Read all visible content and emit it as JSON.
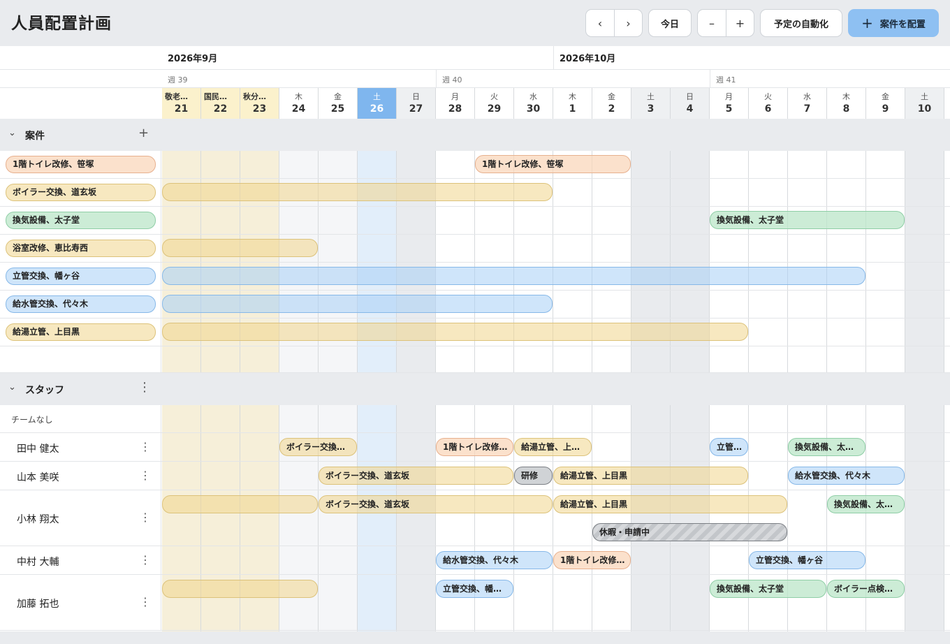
{
  "app": {
    "title": "人員配置計画"
  },
  "toolbar": {
    "prev_label": "‹",
    "next_label": "›",
    "today_label": "今日",
    "zoom_out_label": "–",
    "zoom_in_label": "+",
    "auto_schedule_label": "予定の自動化",
    "assign_label": "案件を配置"
  },
  "calendar": {
    "months": [
      {
        "label": "2026年9月"
      },
      {
        "label": "2026年10月"
      }
    ],
    "weeks": [
      {
        "label": "週 39"
      },
      {
        "label": "週 40"
      },
      {
        "label": "週 41"
      }
    ],
    "days": [
      {
        "dow": "敬老…",
        "num": "21",
        "kind": "holiday"
      },
      {
        "dow": "国民…",
        "num": "22",
        "kind": "holiday"
      },
      {
        "dow": "秋分…",
        "num": "23",
        "kind": "holiday"
      },
      {
        "dow": "木",
        "num": "24",
        "kind": "normal"
      },
      {
        "dow": "金",
        "num": "25",
        "kind": "normal"
      },
      {
        "dow": "土",
        "num": "26",
        "kind": "today"
      },
      {
        "dow": "日",
        "num": "27",
        "kind": "weekend"
      },
      {
        "dow": "月",
        "num": "28",
        "kind": "normal"
      },
      {
        "dow": "火",
        "num": "29",
        "kind": "normal"
      },
      {
        "dow": "水",
        "num": "30",
        "kind": "normal"
      },
      {
        "dow": "木",
        "num": "1",
        "kind": "normal"
      },
      {
        "dow": "金",
        "num": "2",
        "kind": "normal"
      },
      {
        "dow": "土",
        "num": "3",
        "kind": "weekend"
      },
      {
        "dow": "日",
        "num": "4",
        "kind": "weekend"
      },
      {
        "dow": "月",
        "num": "5",
        "kind": "normal"
      },
      {
        "dow": "火",
        "num": "6",
        "kind": "normal"
      },
      {
        "dow": "水",
        "num": "7",
        "kind": "normal"
      },
      {
        "dow": "木",
        "num": "8",
        "kind": "normal"
      },
      {
        "dow": "金",
        "num": "9",
        "kind": "normal"
      },
      {
        "dow": "土",
        "num": "10",
        "kind": "weekend"
      }
    ]
  },
  "projects_section": {
    "label": "案件",
    "chevron_icon": "chevron-down-icon",
    "add_label": "+",
    "rows": [
      {
        "name": "1階トイレ改修、笹塚",
        "color": "orange",
        "bars": [
          {
            "start": 8,
            "span": 4,
            "label": "1階トイレ改修、笹塚"
          }
        ]
      },
      {
        "name": "ボイラー交換、道玄坂",
        "color": "yellow",
        "bars": [
          {
            "start": 0,
            "span": 10,
            "label": ""
          }
        ]
      },
      {
        "name": "換気設備、太子堂",
        "color": "green",
        "bars": [
          {
            "start": 14,
            "span": 5,
            "label": "換気設備、太子堂"
          }
        ]
      },
      {
        "name": "浴室改修、恵比寿西",
        "color": "yellow",
        "bars": [
          {
            "start": 0,
            "span": 4,
            "label": ""
          }
        ]
      },
      {
        "name": "立管交換、幡ヶ谷",
        "color": "blue",
        "bars": [
          {
            "start": 0,
            "span": 18,
            "label": ""
          }
        ]
      },
      {
        "name": "給水管交換、代々木",
        "color": "blue",
        "bars": [
          {
            "start": 0,
            "span": 10,
            "label": ""
          }
        ]
      },
      {
        "name": "給湯立管、上目黒",
        "color": "yellow",
        "bars": [
          {
            "start": 0,
            "span": 15,
            "label": ""
          }
        ]
      }
    ]
  },
  "staff_section": {
    "label": "スタッフ",
    "chevron_icon": "chevron-down-icon",
    "menu_label": "⋮",
    "team_none_label": "チームなし",
    "staff": [
      {
        "name": "田中 健太",
        "lines": 1,
        "bars": [
          {
            "line": 0,
            "start": 3,
            "span": 2,
            "label": "ボイラー交換…",
            "color": "yellow"
          },
          {
            "line": 0,
            "start": 7,
            "span": 2,
            "label": "1階トイレ改修…",
            "color": "orange"
          },
          {
            "line": 0,
            "start": 9,
            "span": 2,
            "label": "給湯立管、上…",
            "color": "yellow"
          },
          {
            "line": 0,
            "start": 14,
            "span": 1,
            "label": "立管…",
            "color": "blue"
          },
          {
            "line": 0,
            "start": 16,
            "span": 2,
            "label": "換気設備、太…",
            "color": "green"
          }
        ]
      },
      {
        "name": "山本 美咲",
        "lines": 1,
        "bars": [
          {
            "line": 0,
            "start": 4,
            "span": 5,
            "label": "ボイラー交換、道玄坂",
            "color": "yellow"
          },
          {
            "line": 0,
            "start": 9,
            "span": 1,
            "label": "研修",
            "color": "gray"
          },
          {
            "line": 0,
            "start": 10,
            "span": 5,
            "label": "給湯立管、上目黒",
            "color": "yellow"
          },
          {
            "line": 0,
            "start": 16,
            "span": 3,
            "label": "給水管交換、代々木",
            "color": "blue"
          }
        ]
      },
      {
        "name": "小林 翔太",
        "lines": 2,
        "bars": [
          {
            "line": 0,
            "start": 0,
            "span": 4,
            "label": "",
            "color": "yellow"
          },
          {
            "line": 0,
            "start": 4,
            "span": 6,
            "label": "ボイラー交換、道玄坂",
            "color": "yellow"
          },
          {
            "line": 0,
            "start": 10,
            "span": 6,
            "label": "給湯立管、上目黒",
            "color": "yellow"
          },
          {
            "line": 0,
            "start": 17,
            "span": 2,
            "label": "換気設備、太…",
            "color": "green"
          },
          {
            "line": 1,
            "start": 11,
            "span": 5,
            "label": "休暇・申請中",
            "color": "leave"
          }
        ]
      },
      {
        "name": "中村 大輔",
        "lines": 1,
        "bars": [
          {
            "line": 0,
            "start": 7,
            "span": 3,
            "label": "給水管交換、代々木",
            "color": "blue"
          },
          {
            "line": 0,
            "start": 10,
            "span": 2,
            "label": "1階トイレ改修…",
            "color": "orange"
          },
          {
            "line": 0,
            "start": 15,
            "span": 3,
            "label": "立管交換、幡ヶ谷",
            "color": "blue"
          }
        ]
      },
      {
        "name": "加藤 拓也",
        "lines": 2,
        "bars": [
          {
            "line": 0,
            "start": 0,
            "span": 4,
            "label": "",
            "color": "yellow"
          },
          {
            "line": 0,
            "start": 7,
            "span": 2,
            "label": "立管交換、幡…",
            "color": "blue"
          },
          {
            "line": 0,
            "start": 14,
            "span": 3,
            "label": "換気設備、太子堂",
            "color": "green"
          },
          {
            "line": 0,
            "start": 17,
            "span": 2,
            "label": "ボイラー点検…",
            "color": "green"
          }
        ]
      }
    ]
  },
  "colors": {
    "orange": "#fad5b9",
    "yellow": "#f0d68c",
    "green": "#bbe6c8",
    "blue": "#a8d0f5",
    "today": "#7fb6ee",
    "holiday": "#fbf1cc",
    "primary_button": "#8ec0f2"
  }
}
